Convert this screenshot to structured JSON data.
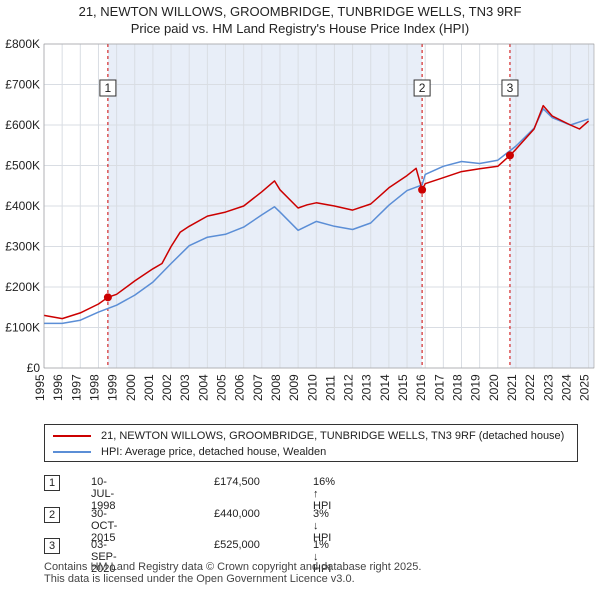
{
  "title_line1": "21, NEWTON WILLOWS, GROOMBRIDGE, TUNBRIDGE WELLS, TN3 9RF",
  "title_line2": "Price paid vs. HM Land Registry's House Price Index (HPI)",
  "colors": {
    "property_line": "#cc0000",
    "hpi_line": "#5b8ed6",
    "plot_bg": "#e8eef8",
    "grid": "#ffffff",
    "marker_line": "#cc0000"
  },
  "chart_data": {
    "type": "line",
    "title": "Price paid vs. HM Land Registry's House Price Index (HPI)",
    "xlim": [
      1995,
      2025.3
    ],
    "ylim": [
      0,
      800000
    ],
    "y_ticks": [
      0,
      100000,
      200000,
      300000,
      400000,
      500000,
      600000,
      700000,
      800000
    ],
    "y_tick_labels": [
      "£0",
      "£100K",
      "£200K",
      "£300K",
      "£400K",
      "£500K",
      "£600K",
      "£700K",
      "£800K"
    ],
    "x_ticks": [
      1995,
      1996,
      1997,
      1998,
      1999,
      2000,
      2001,
      2002,
      2003,
      2004,
      2005,
      2006,
      2007,
      2008,
      2009,
      2010,
      2011,
      2012,
      2013,
      2014,
      2015,
      2016,
      2017,
      2018,
      2019,
      2020,
      2021,
      2022,
      2023,
      2024,
      2025
    ],
    "x_tick_labels": [
      "1995",
      "1996",
      "1997",
      "1998",
      "1999",
      "2000",
      "2001",
      "2002",
      "2003",
      "2004",
      "2005",
      "2006",
      "2007",
      "2008",
      "2009",
      "2010",
      "2011",
      "2012",
      "2013",
      "2014",
      "2015",
      "2016",
      "2017",
      "2018",
      "2019",
      "2020",
      "2021",
      "2022",
      "2023",
      "2024",
      "2025"
    ],
    "shaded_ranges": [
      [
        1998.52,
        2015.83
      ],
      [
        2020.67,
        2025.3
      ]
    ],
    "series": [
      {
        "name": "21, NEWTON WILLOWS, GROOMBRIDGE, TUNBRIDGE WELLS, TN3 9RF (detached house)",
        "x": [
          1995,
          1996,
          1997,
          1998,
          1998.52,
          1999,
          2000,
          2001,
          2001.5,
          2002,
          2002.5,
          2003,
          2004,
          2005,
          2006,
          2007,
          2007.7,
          2008,
          2009,
          2009.5,
          2010,
          2011,
          2012,
          2013,
          2014,
          2015,
          2015.5,
          2015.83,
          2016,
          2017,
          2018,
          2019,
          2020,
          2020.67,
          2021,
          2022,
          2022.5,
          2023,
          2024,
          2024.5,
          2025
        ],
        "values": [
          130000,
          122000,
          136000,
          158000,
          174500,
          182000,
          215000,
          245000,
          258000,
          300000,
          335000,
          350000,
          375000,
          385000,
          400000,
          435000,
          462000,
          440000,
          395000,
          403000,
          408000,
          400000,
          390000,
          405000,
          445000,
          475000,
          493000,
          440000,
          455000,
          470000,
          485000,
          492000,
          498000,
          525000,
          540000,
          590000,
          648000,
          622000,
          600000,
          590000,
          610000
        ]
      },
      {
        "name": "HPI: Average price, detached house, Wealden",
        "x": [
          1995,
          1996,
          1997,
          1998,
          1999,
          2000,
          2001,
          2002,
          2003,
          2004,
          2005,
          2006,
          2007,
          2007.7,
          2008,
          2009,
          2010,
          2011,
          2012,
          2013,
          2014,
          2015,
          2015.83,
          2016,
          2017,
          2018,
          2019,
          2020,
          2021,
          2022,
          2022.5,
          2023,
          2024,
          2025
        ],
        "values": [
          110000,
          110000,
          118000,
          138000,
          155000,
          180000,
          212000,
          258000,
          302000,
          323000,
          330000,
          348000,
          378000,
          398000,
          385000,
          340000,
          362000,
          350000,
          342000,
          358000,
          402000,
          438000,
          452000,
          478000,
          498000,
          510000,
          505000,
          513000,
          548000,
          592000,
          640000,
          618000,
          600000,
          615000
        ]
      }
    ],
    "sale_points": [
      {
        "label": "1",
        "x": 1998.52,
        "value": 174500
      },
      {
        "label": "2",
        "x": 2015.83,
        "value": 440000
      },
      {
        "label": "3",
        "x": 2020.67,
        "value": 525000
      }
    ]
  },
  "legend": {
    "property_label": "21, NEWTON WILLOWS, GROOMBRIDGE, TUNBRIDGE WELLS, TN3 9RF (detached house)",
    "hpi_label": "HPI: Average price, detached house, Wealden"
  },
  "sales": [
    {
      "num": "1",
      "date": "10-JUL-1998",
      "price": "£174,500",
      "hpi": "16% ↑ HPI"
    },
    {
      "num": "2",
      "date": "30-OCT-2015",
      "price": "£440,000",
      "hpi": "3% ↓ HPI"
    },
    {
      "num": "3",
      "date": "03-SEP-2020",
      "price": "£525,000",
      "hpi": "1% ↓ HPI"
    }
  ],
  "footer_line1": "Contains HM Land Registry data © Crown copyright and database right 2025.",
  "footer_line2": "This data is licensed under the Open Government Licence v3.0."
}
